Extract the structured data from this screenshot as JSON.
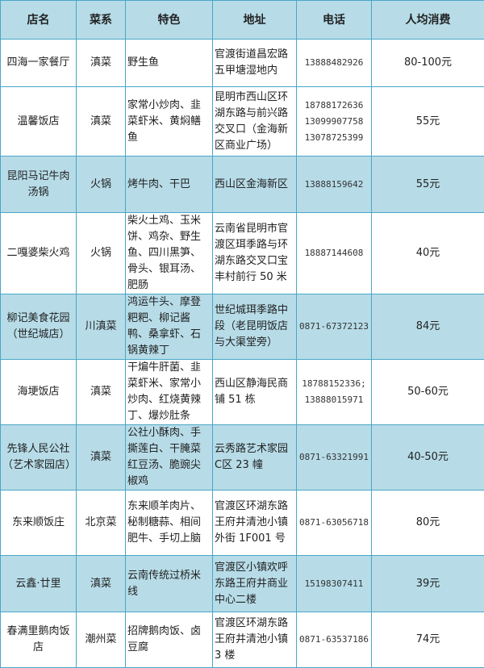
{
  "headers": [
    "店名",
    "菜系",
    "特色",
    "地址",
    "电话",
    "人均消费"
  ],
  "colors": {
    "header_bg": "#b7dce8",
    "stripe_bg": "#b7dce8",
    "border": "#4aa6c6"
  },
  "rows": [
    {
      "name": "四海一家餐厅",
      "cuisine": "滇菜",
      "specialty": "野生鱼",
      "address": "官渡街道昌宏路五甲塘湿地内",
      "phones": [
        "13888482926"
      ],
      "price": "80-100元"
    },
    {
      "name": "温馨饭店",
      "cuisine": "滇菜",
      "specialty": "家常小炒肉、韭菜虾米、黄焖鳝鱼",
      "address": "昆明市西山区环湖东路与前兴路交叉口（金海新区商业广场）",
      "phones": [
        "18788172636",
        "13099907758",
        "13078725399"
      ],
      "price": "55元"
    },
    {
      "name": "昆阳马记牛肉汤锅",
      "cuisine": "火锅",
      "specialty": "烤牛肉、干巴",
      "address": "西山区金海新区",
      "phones": [
        "13888159642"
      ],
      "price": "55元"
    },
    {
      "name": "二嘎婆柴火鸡",
      "cuisine": "火锅",
      "specialty": "柴火土鸡、玉米饼、鸡杂、野生鱼、四川黑笋、骨头、银耳汤、肥肠",
      "address": "云南省昆明市官渡区珥季路与环湖东路交叉口宝丰村前行 50 米",
      "phones": [
        "18887144608"
      ],
      "price": "40元"
    },
    {
      "name": "柳记美食花园（世纪城店）",
      "cuisine": "川滇菜",
      "specialty": "鸿运牛头、摩登粑粑、柳记酱鸭、桑拿虾、石锅黄辣丁",
      "address": "世纪城珥季路中段（老昆明饭店与大渠堂旁）",
      "phones": [
        "0871-67372123"
      ],
      "price": "84元"
    },
    {
      "name": "海埂饭店",
      "cuisine": "滇菜",
      "specialty": "干煸牛肝菌、韭菜虾米、家常小炒肉、红烧黄辣丁、爆炒肚条",
      "address": "西山区静海民商铺 51 栋",
      "phones": [
        "18788152336;",
        "13888015971"
      ],
      "price": "50-60元"
    },
    {
      "name": "先锋人民公社（艺术家园店）",
      "cuisine": "滇菜",
      "specialty": "公社小酥肉、手撕莲白、干腌菜红豆汤、脆豌尖椒鸡",
      "address": "云秀路艺术家园C区 23 幢",
      "phones": [
        "0871-63321991"
      ],
      "price": "40-50元"
    },
    {
      "name": "东来顺饭庄",
      "cuisine": "北京菜",
      "specialty": "东来顺羊肉片、秘制糖蒜、相间肥牛、手切上脑",
      "address": "官渡区环湖东路王府井清池小镇外街 1F001 号",
      "phones": [
        "0871-63056718"
      ],
      "price": "80元"
    },
    {
      "name": "云鑫·廿里",
      "cuisine": "滇菜",
      "specialty": "云南传统过桥米线",
      "address": "官渡区小镇欢呼东路王府井商业中心二楼",
      "phones": [
        "15198307411"
      ],
      "price": "39元"
    },
    {
      "name": "春满里鹅肉饭店",
      "cuisine": "潮州菜",
      "specialty": "招牌鹅肉饭、卤豆腐",
      "address": "官渡区环湖东路王府井清池小镇 3 楼",
      "phones": [
        "0871-63537186"
      ],
      "price": "74元"
    }
  ]
}
